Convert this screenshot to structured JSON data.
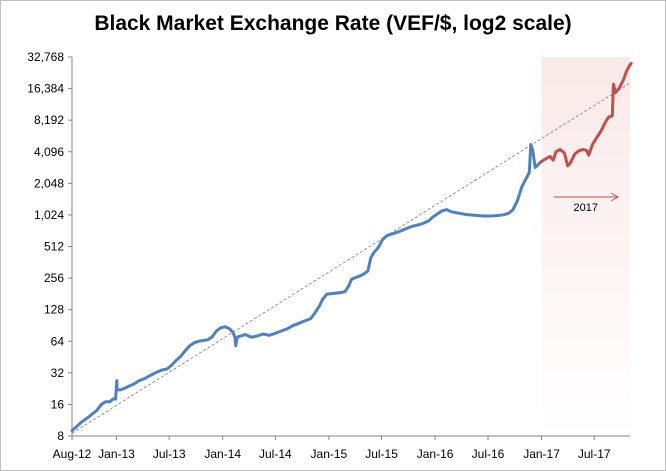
{
  "chart_data": {
    "type": "line",
    "title": "Black Market Exchange Rate (VEF/$, log2 scale)",
    "y_scale": "log2",
    "ylim": [
      8,
      32768
    ],
    "xlim": [
      "2012-08",
      "2017-11"
    ],
    "grid": false,
    "legend": "none",
    "y_ticks": [
      "8",
      "16",
      "32",
      "64",
      "128",
      "256",
      "512",
      "1,024",
      "2,048",
      "4,096",
      "8,192",
      "16,384",
      "32,768"
    ],
    "x_ticks": [
      "Aug-12",
      "Jan-13",
      "Jul-13",
      "Jan-14",
      "Jul-14",
      "Jan-15",
      "Jul-15",
      "Jan-16",
      "Jul-16",
      "Jan-17",
      "Jul-17"
    ],
    "highlight_region": {
      "from": "2017-01",
      "to": "2017-11",
      "color": "#fbe9e9"
    },
    "annotation": {
      "text": "2017"
    },
    "colors": {
      "series_before_2017": "#4f81bd",
      "series_2017": "#c0504d",
      "trend": "#808080",
      "axis": "#868686"
    },
    "series": [
      {
        "points": [
          [
            "2012-08-01",
            9
          ],
          [
            "2012-08-20",
            10
          ],
          [
            "2012-09-05",
            11
          ],
          [
            "2012-09-25",
            12
          ],
          [
            "2012-10-10",
            13
          ],
          [
            "2012-10-25",
            14
          ],
          [
            "2012-11-10",
            16
          ],
          [
            "2012-11-25",
            17
          ],
          [
            "2012-12-10",
            17
          ],
          [
            "2012-12-20",
            18
          ],
          [
            "2012-12-29",
            18
          ],
          [
            "2013-01-02",
            27
          ],
          [
            "2013-01-03",
            22
          ],
          [
            "2013-01-15",
            22
          ],
          [
            "2013-02-01",
            23
          ],
          [
            "2013-02-15",
            24
          ],
          [
            "2013-03-01",
            25
          ],
          [
            "2013-03-20",
            27
          ],
          [
            "2013-04-05",
            28
          ],
          [
            "2013-04-25",
            30
          ],
          [
            "2013-05-15",
            32
          ],
          [
            "2013-06-05",
            34
          ],
          [
            "2013-06-25",
            35
          ],
          [
            "2013-07-10",
            38
          ],
          [
            "2013-07-25",
            42
          ],
          [
            "2013-08-10",
            46
          ],
          [
            "2013-08-25",
            52
          ],
          [
            "2013-09-10",
            58
          ],
          [
            "2013-09-25",
            62
          ],
          [
            "2013-10-10",
            64
          ],
          [
            "2013-10-25",
            65
          ],
          [
            "2013-11-10",
            66
          ],
          [
            "2013-11-25",
            70
          ],
          [
            "2013-12-10",
            80
          ],
          [
            "2013-12-25",
            86
          ],
          [
            "2014-01-10",
            88
          ],
          [
            "2014-01-25",
            84
          ],
          [
            "2014-02-05",
            78
          ],
          [
            "2014-02-12",
            70
          ],
          [
            "2014-02-15",
            58
          ],
          [
            "2014-02-20",
            70
          ],
          [
            "2014-03-05",
            72
          ],
          [
            "2014-03-20",
            74
          ],
          [
            "2014-04-10",
            70
          ],
          [
            "2014-05-01",
            72
          ],
          [
            "2014-05-20",
            75
          ],
          [
            "2014-06-10",
            73
          ],
          [
            "2014-06-30",
            76
          ],
          [
            "2014-07-20",
            80
          ],
          [
            "2014-08-10",
            84
          ],
          [
            "2014-08-30",
            90
          ],
          [
            "2014-09-20",
            95
          ],
          [
            "2014-10-10",
            100
          ],
          [
            "2014-10-30",
            105
          ],
          [
            "2014-11-15",
            120
          ],
          [
            "2014-11-30",
            140
          ],
          [
            "2014-12-10",
            160
          ],
          [
            "2014-12-25",
            180
          ],
          [
            "2015-01-10",
            182
          ],
          [
            "2015-01-25",
            184
          ],
          [
            "2015-02-10",
            186
          ],
          [
            "2015-02-25",
            190
          ],
          [
            "2015-03-10",
            215
          ],
          [
            "2015-03-20",
            250
          ],
          [
            "2015-04-05",
            260
          ],
          [
            "2015-04-20",
            270
          ],
          [
            "2015-05-01",
            280
          ],
          [
            "2015-05-15",
            300
          ],
          [
            "2015-05-25",
            400
          ],
          [
            "2015-06-05",
            450
          ],
          [
            "2015-06-20",
            500
          ],
          [
            "2015-07-05",
            600
          ],
          [
            "2015-07-20",
            650
          ],
          [
            "2015-08-10",
            680
          ],
          [
            "2015-08-25",
            700
          ],
          [
            "2015-09-10",
            730
          ],
          [
            "2015-09-25",
            760
          ],
          [
            "2015-10-10",
            790
          ],
          [
            "2015-10-25",
            810
          ],
          [
            "2015-11-10",
            830
          ],
          [
            "2015-11-25",
            860
          ],
          [
            "2015-12-10",
            900
          ],
          [
            "2015-12-25",
            980
          ],
          [
            "2016-01-10",
            1050
          ],
          [
            "2016-01-25",
            1120
          ],
          [
            "2016-02-10",
            1150
          ],
          [
            "2016-02-25",
            1100
          ],
          [
            "2016-03-10",
            1080
          ],
          [
            "2016-03-25",
            1060
          ],
          [
            "2016-04-10",
            1040
          ],
          [
            "2016-04-25",
            1030
          ],
          [
            "2016-05-10",
            1020
          ],
          [
            "2016-05-25",
            1010
          ],
          [
            "2016-06-15",
            1000
          ],
          [
            "2016-07-05",
            1000
          ],
          [
            "2016-07-25",
            1005
          ],
          [
            "2016-08-10",
            1015
          ],
          [
            "2016-08-25",
            1030
          ],
          [
            "2016-09-10",
            1060
          ],
          [
            "2016-09-25",
            1150
          ],
          [
            "2016-10-10",
            1400
          ],
          [
            "2016-10-25",
            1900
          ],
          [
            "2016-11-10",
            2300
          ],
          [
            "2016-11-20",
            2600
          ],
          [
            "2016-11-25",
            4800
          ],
          [
            "2016-12-02",
            4200
          ],
          [
            "2016-12-10",
            2900
          ],
          [
            "2016-12-31",
            3300
          ]
        ]
      },
      {
        "points": [
          [
            "2016-12-31",
            3300
          ],
          [
            "2017-01-15",
            3500
          ],
          [
            "2017-01-30",
            3700
          ],
          [
            "2017-02-10",
            3400
          ],
          [
            "2017-02-20",
            4100
          ],
          [
            "2017-03-05",
            4300
          ],
          [
            "2017-03-20",
            4000
          ],
          [
            "2017-04-01",
            3000
          ],
          [
            "2017-04-10",
            3200
          ],
          [
            "2017-04-25",
            3900
          ],
          [
            "2017-05-10",
            4200
          ],
          [
            "2017-05-25",
            4300
          ],
          [
            "2017-06-05",
            4200
          ],
          [
            "2017-06-12",
            3800
          ],
          [
            "2017-06-25",
            4800
          ],
          [
            "2017-07-10",
            5600
          ],
          [
            "2017-07-25",
            6500
          ],
          [
            "2017-08-10",
            8000
          ],
          [
            "2017-08-20",
            8800
          ],
          [
            "2017-09-01",
            9000
          ],
          [
            "2017-09-05",
            18000
          ],
          [
            "2017-09-12",
            15000
          ],
          [
            "2017-09-25",
            16500
          ],
          [
            "2017-10-10",
            20000
          ],
          [
            "2017-10-20",
            24000
          ],
          [
            "2017-10-30",
            27000
          ],
          [
            "2017-11-05",
            28500
          ]
        ]
      }
    ],
    "trendline": {
      "style": "dashed",
      "from": [
        "2012-08-01",
        8.5
      ],
      "to": [
        "2017-11-01",
        18500
      ]
    }
  }
}
